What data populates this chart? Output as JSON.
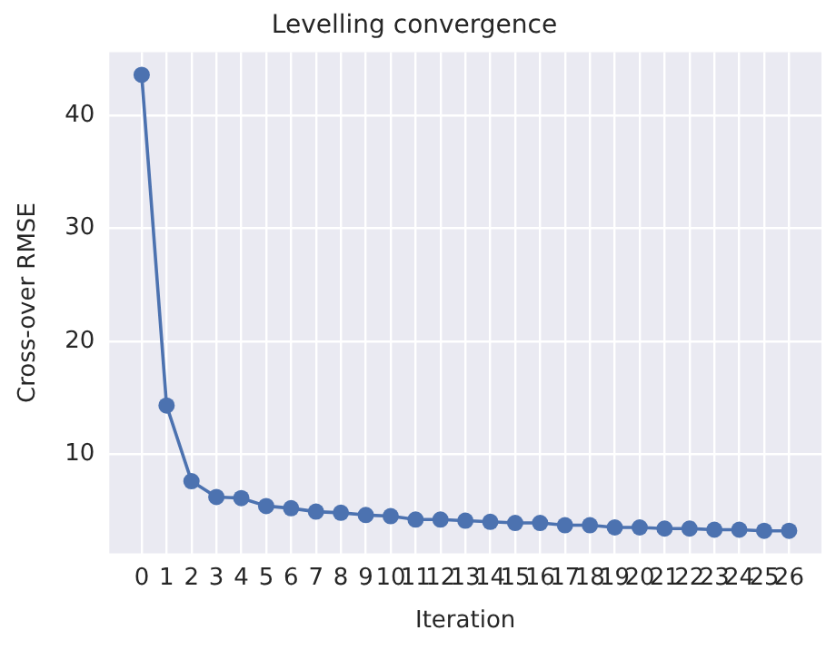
{
  "chart_data": {
    "type": "line",
    "title": "Levelling convergence",
    "xlabel": "Iteration",
    "ylabel": "Cross-over RMSE",
    "x": [
      0,
      1,
      2,
      3,
      4,
      5,
      6,
      7,
      8,
      9,
      10,
      11,
      12,
      13,
      14,
      15,
      16,
      17,
      18,
      19,
      20,
      21,
      22,
      23,
      24,
      25,
      26
    ],
    "series": [
      {
        "color": "#4c72b0",
        "values": [
          43.6,
          14.3,
          7.6,
          6.2,
          6.1,
          5.4,
          5.2,
          4.9,
          4.8,
          4.6,
          4.5,
          4.2,
          4.2,
          4.1,
          4.0,
          3.9,
          3.9,
          3.7,
          3.7,
          3.5,
          3.5,
          3.4,
          3.4,
          3.3,
          3.3,
          3.2,
          3.2
        ]
      }
    ],
    "xlim": [
      -1.3,
      27.3
    ],
    "xticks": [
      0,
      1,
      2,
      3,
      4,
      5,
      6,
      7,
      8,
      9,
      10,
      11,
      12,
      13,
      14,
      15,
      16,
      17,
      18,
      19,
      20,
      21,
      22,
      23,
      24,
      25,
      26
    ],
    "ylim": [
      1.2,
      45.6
    ],
    "yticks": [
      10,
      20,
      30,
      40
    ],
    "grid": true,
    "marker": "circle",
    "line_style": "solid",
    "legend": false
  }
}
